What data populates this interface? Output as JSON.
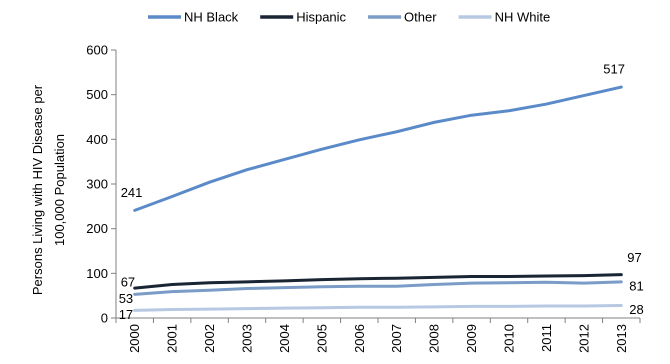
{
  "chart_data": {
    "type": "line",
    "title": "",
    "xlabel": "",
    "ylabel": "Persons Living with HIV Disease per 100,000 Population",
    "ylabel_lines": [
      "Persons Living with HIV Disease per",
      "100,000 Population"
    ],
    "ylim": [
      0,
      600
    ],
    "yticks": [
      0,
      100,
      200,
      300,
      400,
      500,
      600
    ],
    "x": [
      "2000",
      "2001",
      "2002",
      "2003",
      "2004",
      "2005",
      "2006",
      "2007",
      "2008",
      "2009",
      "2010",
      "2011",
      "2012",
      "2013"
    ],
    "grid": false,
    "legend_position": "top",
    "series": [
      {
        "name": "NH Black",
        "color": "#5b8ac9",
        "values": [
          241,
          272,
          304,
          332,
          355,
          378,
          399,
          417,
          438,
          454,
          464,
          479,
          498,
          517
        ],
        "labels": {
          "first": "241",
          "last": "517"
        }
      },
      {
        "name": "Hispanic",
        "color": "#1a2533",
        "values": [
          67,
          75,
          79,
          81,
          83,
          86,
          88,
          89,
          91,
          93,
          93,
          94,
          95,
          97
        ],
        "labels": {
          "first": "67",
          "last": "97"
        }
      },
      {
        "name": "Other",
        "color": "#7a9cc6",
        "values": [
          53,
          59,
          62,
          66,
          68,
          70,
          71,
          71,
          75,
          78,
          79,
          80,
          78,
          81
        ],
        "labels": {
          "first": "53",
          "last": "81"
        }
      },
      {
        "name": "NH White",
        "color": "#b7c8e2",
        "values": [
          17,
          19,
          20,
          21,
          22,
          23,
          24,
          24,
          25,
          26,
          26,
          27,
          27,
          28
        ],
        "labels": {
          "first": "17",
          "last": "28"
        }
      }
    ]
  }
}
